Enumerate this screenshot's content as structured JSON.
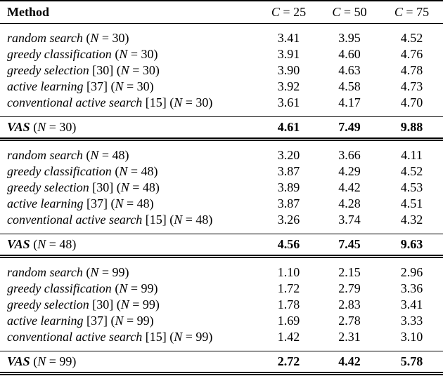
{
  "page": {
    "background": "#ffffff",
    "text_color": "#000000",
    "rule_color": "#000000"
  },
  "table": {
    "header": {
      "method_label": "Method",
      "columns": [
        {
          "symbol": "C",
          "rest": " = 25"
        },
        {
          "symbol": "C",
          "rest": " = 50"
        },
        {
          "symbol": "C",
          "rest": " = 75"
        }
      ]
    },
    "sections": [
      {
        "n": "30",
        "rows": [
          {
            "method": [
              {
                "t": "random search",
                "i": 1
              },
              {
                "t": " (",
                "i": 0
              },
              {
                "t": "N",
                "i": 1
              },
              {
                "t": " = 30)",
                "i": 0
              }
            ],
            "values": [
              "3.41",
              "3.95",
              "4.52"
            ]
          },
          {
            "method": [
              {
                "t": "greedy classification",
                "i": 1
              },
              {
                "t": " (",
                "i": 0
              },
              {
                "t": "N",
                "i": 1
              },
              {
                "t": " = 30)",
                "i": 0
              }
            ],
            "values": [
              "3.91",
              "4.60",
              "4.76"
            ]
          },
          {
            "method": [
              {
                "t": "greedy selection",
                "i": 1
              },
              {
                "t": " [30] (",
                "i": 0
              },
              {
                "t": "N",
                "i": 1
              },
              {
                "t": " = 30)",
                "i": 0
              }
            ],
            "values": [
              "3.90",
              "4.63",
              "4.78"
            ]
          },
          {
            "method": [
              {
                "t": "active learning",
                "i": 1
              },
              {
                "t": " [37] (",
                "i": 0
              },
              {
                "t": "N",
                "i": 1
              },
              {
                "t": " = 30)",
                "i": 0
              }
            ],
            "values": [
              "3.92",
              "4.58",
              "4.73"
            ]
          },
          {
            "method": [
              {
                "t": "conventional active search",
                "i": 1
              },
              {
                "t": " [15] (",
                "i": 0
              },
              {
                "t": "N",
                "i": 1
              },
              {
                "t": " = 30)",
                "i": 0
              }
            ],
            "values": [
              "3.61",
              "4.17",
              "4.70"
            ]
          }
        ],
        "vas": {
          "method": [
            {
              "t": "VAS",
              "i": 1,
              "b": 1
            },
            {
              "t": " (",
              "i": 0
            },
            {
              "t": "N",
              "i": 1
            },
            {
              "t": " = 30)",
              "i": 0
            }
          ],
          "values": [
            "4.61",
            "7.49",
            "9.88"
          ]
        }
      },
      {
        "n": "48",
        "rows": [
          {
            "method": [
              {
                "t": "random search",
                "i": 1
              },
              {
                "t": " (",
                "i": 0
              },
              {
                "t": "N",
                "i": 1
              },
              {
                "t": " = 48)",
                "i": 0
              }
            ],
            "values": [
              "3.20",
              "3.66",
              "4.11"
            ]
          },
          {
            "method": [
              {
                "t": "greedy classification",
                "i": 1
              },
              {
                "t": " (",
                "i": 0
              },
              {
                "t": "N",
                "i": 1
              },
              {
                "t": " = 48)",
                "i": 0
              }
            ],
            "values": [
              "3.87",
              "4.29",
              "4.52"
            ]
          },
          {
            "method": [
              {
                "t": "greedy selection",
                "i": 1
              },
              {
                "t": " [30] (",
                "i": 0
              },
              {
                "t": "N",
                "i": 1
              },
              {
                "t": " = 48)",
                "i": 0
              }
            ],
            "values": [
              "3.89",
              "4.42",
              "4.53"
            ]
          },
          {
            "method": [
              {
                "t": "active learning",
                "i": 1
              },
              {
                "t": " [37] (",
                "i": 0
              },
              {
                "t": "N",
                "i": 1
              },
              {
                "t": " = 48)",
                "i": 0
              }
            ],
            "values": [
              "3.87",
              "4.28",
              "4.51"
            ]
          },
          {
            "method": [
              {
                "t": "conventional active search",
                "i": 1
              },
              {
                "t": " [15] (",
                "i": 0
              },
              {
                "t": "N",
                "i": 1
              },
              {
                "t": " = 48)",
                "i": 0
              }
            ],
            "values": [
              "3.26",
              "3.74",
              "4.32"
            ]
          }
        ],
        "vas": {
          "method": [
            {
              "t": "VAS",
              "i": 1,
              "b": 1
            },
            {
              "t": " (",
              "i": 0
            },
            {
              "t": "N",
              "i": 1
            },
            {
              "t": " = 48)",
              "i": 0
            }
          ],
          "values": [
            "4.56",
            "7.45",
            "9.63"
          ]
        }
      },
      {
        "n": "99",
        "rows": [
          {
            "method": [
              {
                "t": "random search",
                "i": 1
              },
              {
                "t": " (",
                "i": 0
              },
              {
                "t": "N",
                "i": 1
              },
              {
                "t": " = 99)",
                "i": 0
              }
            ],
            "values": [
              "1.10",
              "2.15",
              "2.96"
            ]
          },
          {
            "method": [
              {
                "t": "greedy classification",
                "i": 1
              },
              {
                "t": " (",
                "i": 0
              },
              {
                "t": "N",
                "i": 1
              },
              {
                "t": " = 99)",
                "i": 0
              }
            ],
            "values": [
              "1.72",
              "2.79",
              "3.36"
            ]
          },
          {
            "method": [
              {
                "t": "greedy selection",
                "i": 1
              },
              {
                "t": " [30] (",
                "i": 0
              },
              {
                "t": "N",
                "i": 1
              },
              {
                "t": " = 99)",
                "i": 0
              }
            ],
            "values": [
              "1.78",
              "2.83",
              "3.41"
            ]
          },
          {
            "method": [
              {
                "t": "active learning",
                "i": 1
              },
              {
                "t": " [37] (",
                "i": 0
              },
              {
                "t": "N",
                "i": 1
              },
              {
                "t": " = 99)",
                "i": 0
              }
            ],
            "values": [
              "1.69",
              "2.78",
              "3.33"
            ]
          },
          {
            "method": [
              {
                "t": "conventional active search",
                "i": 1
              },
              {
                "t": " [15] (",
                "i": 0
              },
              {
                "t": "N",
                "i": 1
              },
              {
                "t": " = 99)",
                "i": 0
              }
            ],
            "values": [
              "1.42",
              "2.31",
              "3.10"
            ]
          }
        ],
        "vas": {
          "method": [
            {
              "t": "VAS",
              "i": 1,
              "b": 1
            },
            {
              "t": " (",
              "i": 0
            },
            {
              "t": "N",
              "i": 1
            },
            {
              "t": " = 99)",
              "i": 0
            }
          ],
          "values": [
            "2.72",
            "4.42",
            "5.78"
          ]
        }
      }
    ]
  }
}
